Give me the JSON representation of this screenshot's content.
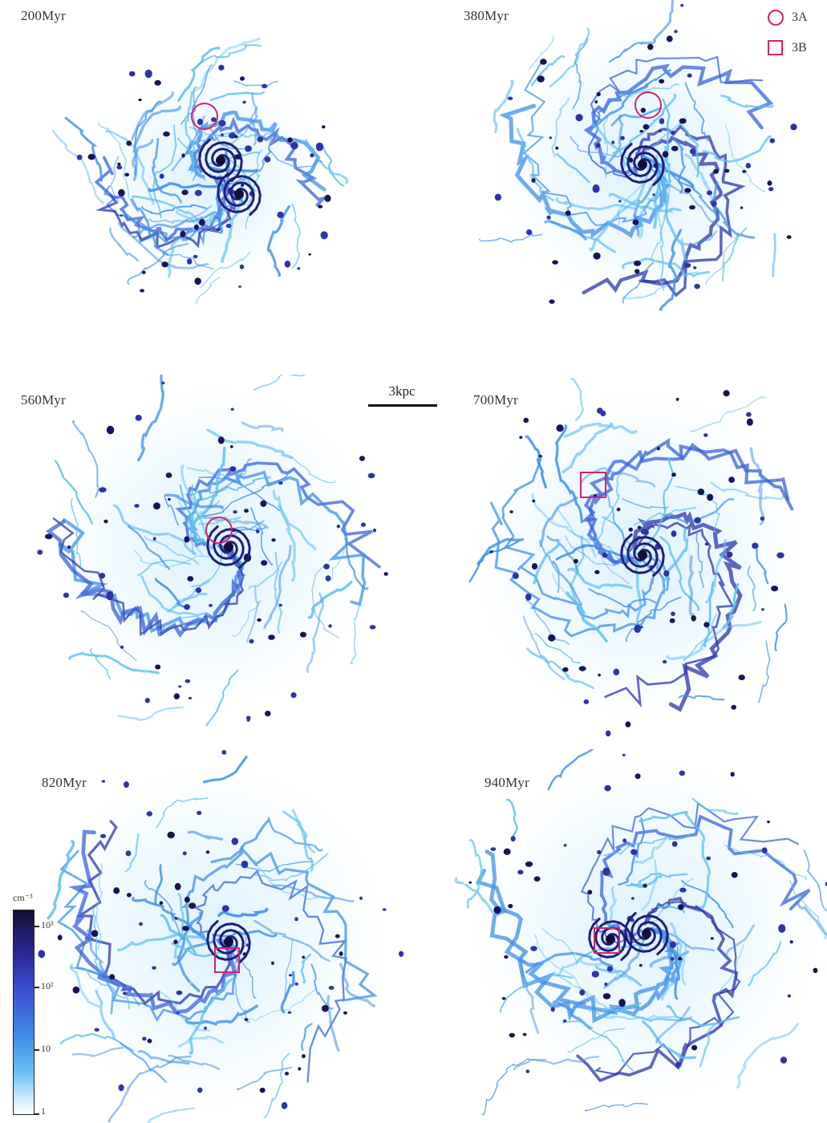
{
  "panels": [
    {
      "id": "200",
      "label": "200Myr"
    },
    {
      "id": "380",
      "label": "380Myr"
    },
    {
      "id": "560",
      "label": "560Myr"
    },
    {
      "id": "700",
      "label": "700Myr"
    },
    {
      "id": "820",
      "label": "820Myr"
    },
    {
      "id": "940",
      "label": "940Myr"
    }
  ],
  "legend": {
    "circle_label": "3A",
    "square_label": "3B",
    "marker_color": "#d4226a"
  },
  "scale_bar": {
    "label": "3kpc"
  },
  "colorbar": {
    "unit": "cm⁻³",
    "ticks": [
      "10³",
      "10²",
      "10",
      "1"
    ],
    "colors": [
      "#141032",
      "#2a2a9a",
      "#3e56d6",
      "#3f8ee8",
      "#6bc2f3",
      "#ffffff"
    ]
  },
  "icons": {
    "circle_marker": "circle-marker-icon",
    "square_marker": "square-marker-icon"
  }
}
